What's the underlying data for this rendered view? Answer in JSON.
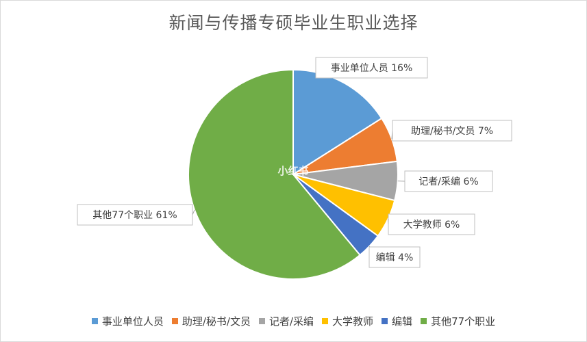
{
  "chart_data": {
    "type": "pie",
    "title": "新闻与传播专硕毕业生职业选择",
    "categories": [
      "事业单位人员",
      "助理/秘书/文员",
      "记者/采编",
      "大学教师",
      "编辑",
      "其他77个职业"
    ],
    "values": [
      16,
      7,
      6,
      6,
      4,
      61
    ],
    "data_labels": [
      "事业单位人员 16%",
      "助理/秘书/文员 7%",
      "记者/采编 6%",
      "大学教师 6%",
      "编辑 4%",
      "其他77个职业 61%"
    ],
    "colors": [
      "#5b9bd5",
      "#ed7d31",
      "#a5a5a5",
      "#ffc000",
      "#4472c4",
      "#70ad47"
    ],
    "legend_position": "bottom",
    "start_angle": "12 o'clock, clockwise"
  },
  "watermark": "小红书"
}
